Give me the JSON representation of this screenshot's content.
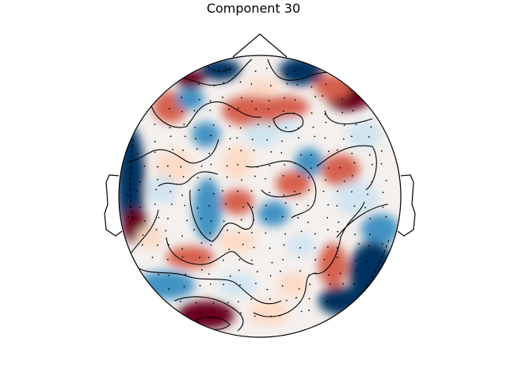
{
  "title": "Component 30",
  "colors": {
    "strong_negative": "#053061",
    "negative": "#4393c3",
    "light_negative": "#d1e5f0",
    "neutral": "#f7f7f7",
    "light_positive": "#fddbc7",
    "positive": "#d6604d",
    "strong_positive": "#67001f",
    "outline": "#000000"
  }
}
